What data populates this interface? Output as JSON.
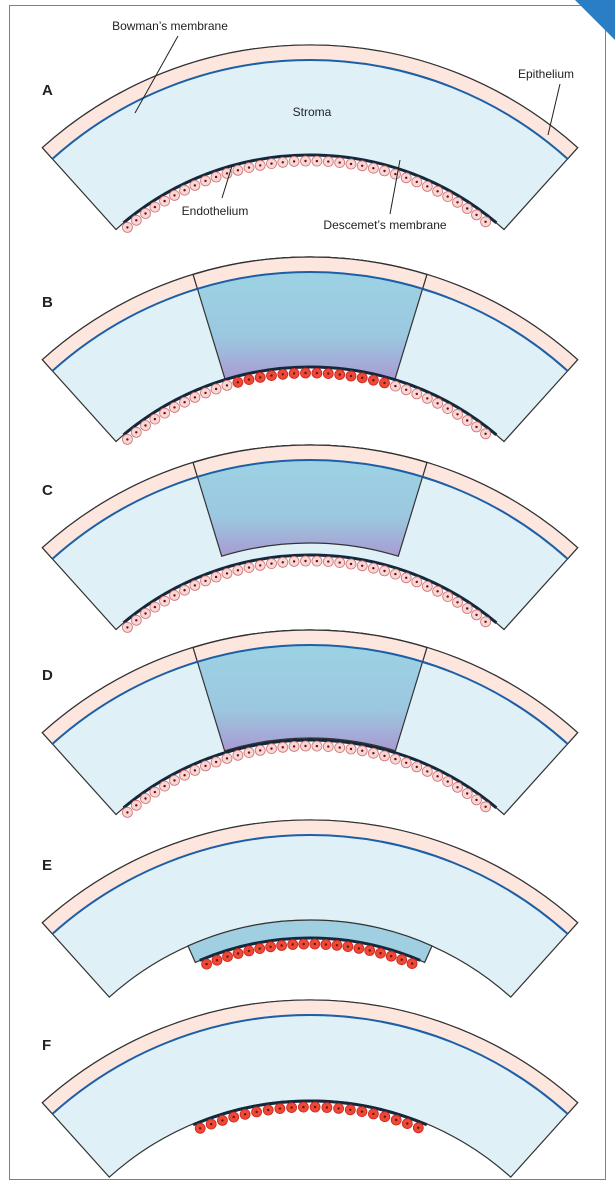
{
  "panels": [
    {
      "label": "A"
    },
    {
      "label": "B"
    },
    {
      "label": "C"
    },
    {
      "label": "D"
    },
    {
      "label": "E"
    },
    {
      "label": "F"
    }
  ],
  "annotations": {
    "bowman": "Bowman’s membrane",
    "stroma": "Stroma",
    "epithelium": "Epithelium",
    "endothelium": "Endothelium",
    "descemet": "Descemet’s membrane"
  }
}
